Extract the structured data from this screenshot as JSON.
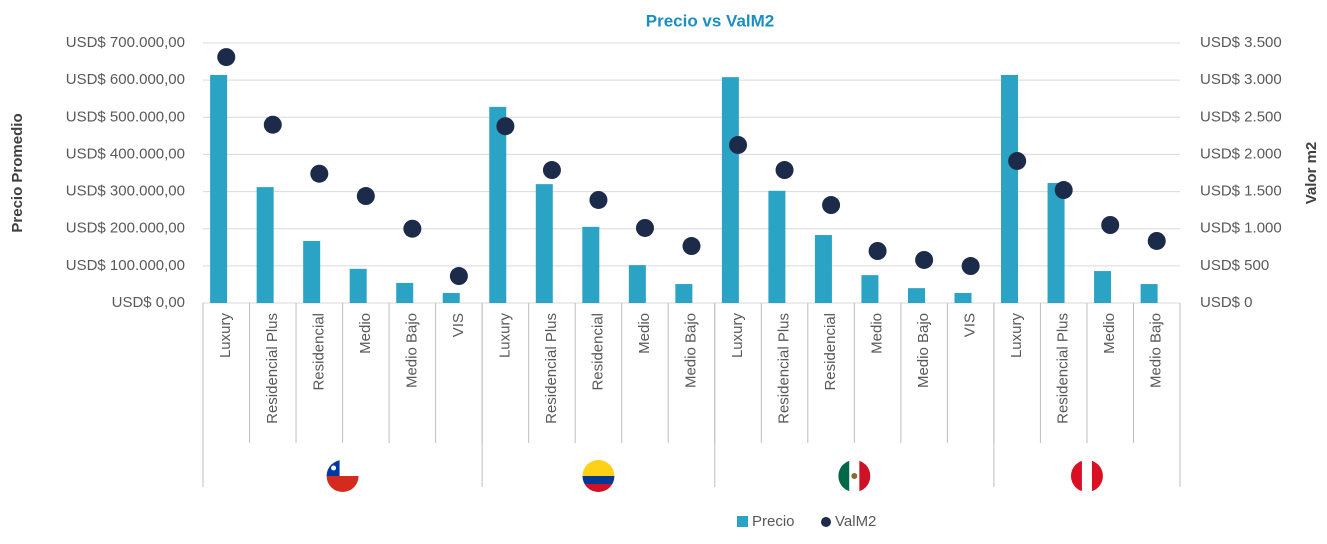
{
  "chart_data": {
    "type": "bar",
    "title": "Precio vs ValM2",
    "y_label": "Precio Promedio",
    "y2_label": "Valor m2",
    "categories": [
      "Luxury",
      "Residencial Plus",
      "Residencial",
      "Medio",
      "Medio Bajo",
      "VIS",
      "Luxury",
      "Residencial Plus",
      "Residencial",
      "Medio",
      "Medio Bajo",
      "Luxury",
      "Residencial Plus",
      "Residencial",
      "Medio",
      "Medio Bajo",
      "VIS",
      "Luxury",
      "Residencial Plus",
      "Medio",
      "Medio Bajo"
    ],
    "groups": [
      6,
      5,
      6,
      4
    ],
    "series": [
      {
        "name": "Precio",
        "type": "bar",
        "color": "#2aa3c4",
        "values": [
          614000,
          312000,
          167000,
          92000,
          54000,
          27000,
          528000,
          320000,
          205000,
          102000,
          51000,
          608000,
          302000,
          183000,
          75000,
          40000,
          27000,
          614000,
          323000,
          86000,
          51000
        ]
      },
      {
        "name": "ValM2",
        "type": "scatter",
        "axis": "y2",
        "color": "#1c2b4a",
        "values": [
          3310,
          2400,
          1740,
          1440,
          1000,
          363,
          2380,
          1790,
          1387,
          1010,
          767,
          2127,
          1790,
          1319,
          700,
          579,
          498,
          1912,
          1521,
          1050,
          835
        ]
      }
    ],
    "ylim": [
      0,
      700000
    ],
    "yticks": [
      {
        "value": 0,
        "label": "USD$ 0,00"
      },
      {
        "value": 100000,
        "label": "USD$ 100.000,00"
      },
      {
        "value": 200000,
        "label": "USD$ 200.000,00"
      },
      {
        "value": 300000,
        "label": "USD$ 300.000,00"
      },
      {
        "value": 400000,
        "label": "USD$ 400.000,00"
      },
      {
        "value": 500000,
        "label": "USD$ 500.000,00"
      },
      {
        "value": 600000,
        "label": "USD$ 600.000,00"
      },
      {
        "value": 700000,
        "label": "USD$ 700.000,00"
      }
    ],
    "y2lim": [
      0,
      3500
    ],
    "y2ticks": [
      {
        "value": 0,
        "label": "USD$ 0"
      },
      {
        "value": 500,
        "label": "USD$ 500"
      },
      {
        "value": 1000,
        "label": "USD$ 1.000"
      },
      {
        "value": 1500,
        "label": "USD$ 1.500"
      },
      {
        "value": 2000,
        "label": "USD$ 2.000"
      },
      {
        "value": 2500,
        "label": "USD$ 2.500"
      },
      {
        "value": 3000,
        "label": "USD$ 3.000"
      },
      {
        "value": 3500,
        "label": "USD$ 3.500"
      }
    ],
    "grid": true,
    "legend": "bottom"
  }
}
